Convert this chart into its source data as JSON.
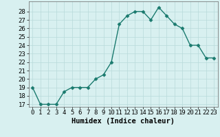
{
  "x": [
    0,
    1,
    2,
    3,
    4,
    5,
    6,
    7,
    8,
    9,
    10,
    11,
    12,
    13,
    14,
    15,
    16,
    17,
    18,
    19,
    20,
    21,
    22,
    23
  ],
  "y": [
    19,
    17,
    17,
    17,
    18.5,
    19,
    19,
    19,
    20,
    20.5,
    22,
    26.5,
    27.5,
    28,
    28,
    27,
    28.5,
    27.5,
    26.5,
    26,
    24,
    24,
    22.5,
    22.5
  ],
  "line_color": "#1a7a6e",
  "marker_color": "#1a7a6e",
  "bg_color": "#d8f0f0",
  "grid_color": "#b8dada",
  "xlabel": "Humidex (Indice chaleur)",
  "ylim_min": 17,
  "ylim_max": 29,
  "xlim_min": -0.5,
  "xlim_max": 23.5,
  "yticks": [
    17,
    18,
    19,
    20,
    21,
    22,
    23,
    24,
    25,
    26,
    27,
    28
  ],
  "xticks": [
    0,
    1,
    2,
    3,
    4,
    5,
    6,
    7,
    8,
    9,
    10,
    11,
    12,
    13,
    14,
    15,
    16,
    17,
    18,
    19,
    20,
    21,
    22,
    23
  ],
  "tick_fontsize": 6.5,
  "xlabel_fontsize": 7.5,
  "linewidth": 1.0,
  "markersize": 2.5
}
